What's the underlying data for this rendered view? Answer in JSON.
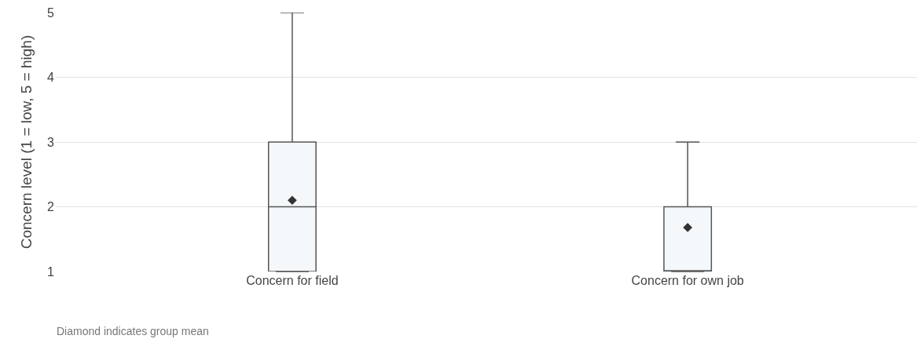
{
  "chart_data": {
    "type": "box",
    "categories": [
      "Concern for field",
      "Concern for own job"
    ],
    "boxes": [
      {
        "low": 1,
        "q1": 1,
        "median": 2,
        "q3": 3,
        "high": 5,
        "mean": 2.1
      },
      {
        "low": 1,
        "q1": 1,
        "median": 1,
        "q3": 2,
        "high": 3,
        "mean": 1.68
      }
    ],
    "ylabel": "Concern level (1 = low, 5 = high)",
    "ylim": [
      1,
      5
    ],
    "yticks": [
      1,
      2,
      3,
      4,
      5
    ],
    "grid": "y",
    "marker": "diamond",
    "annotations": [
      "Diamond indicates group mean"
    ]
  }
}
